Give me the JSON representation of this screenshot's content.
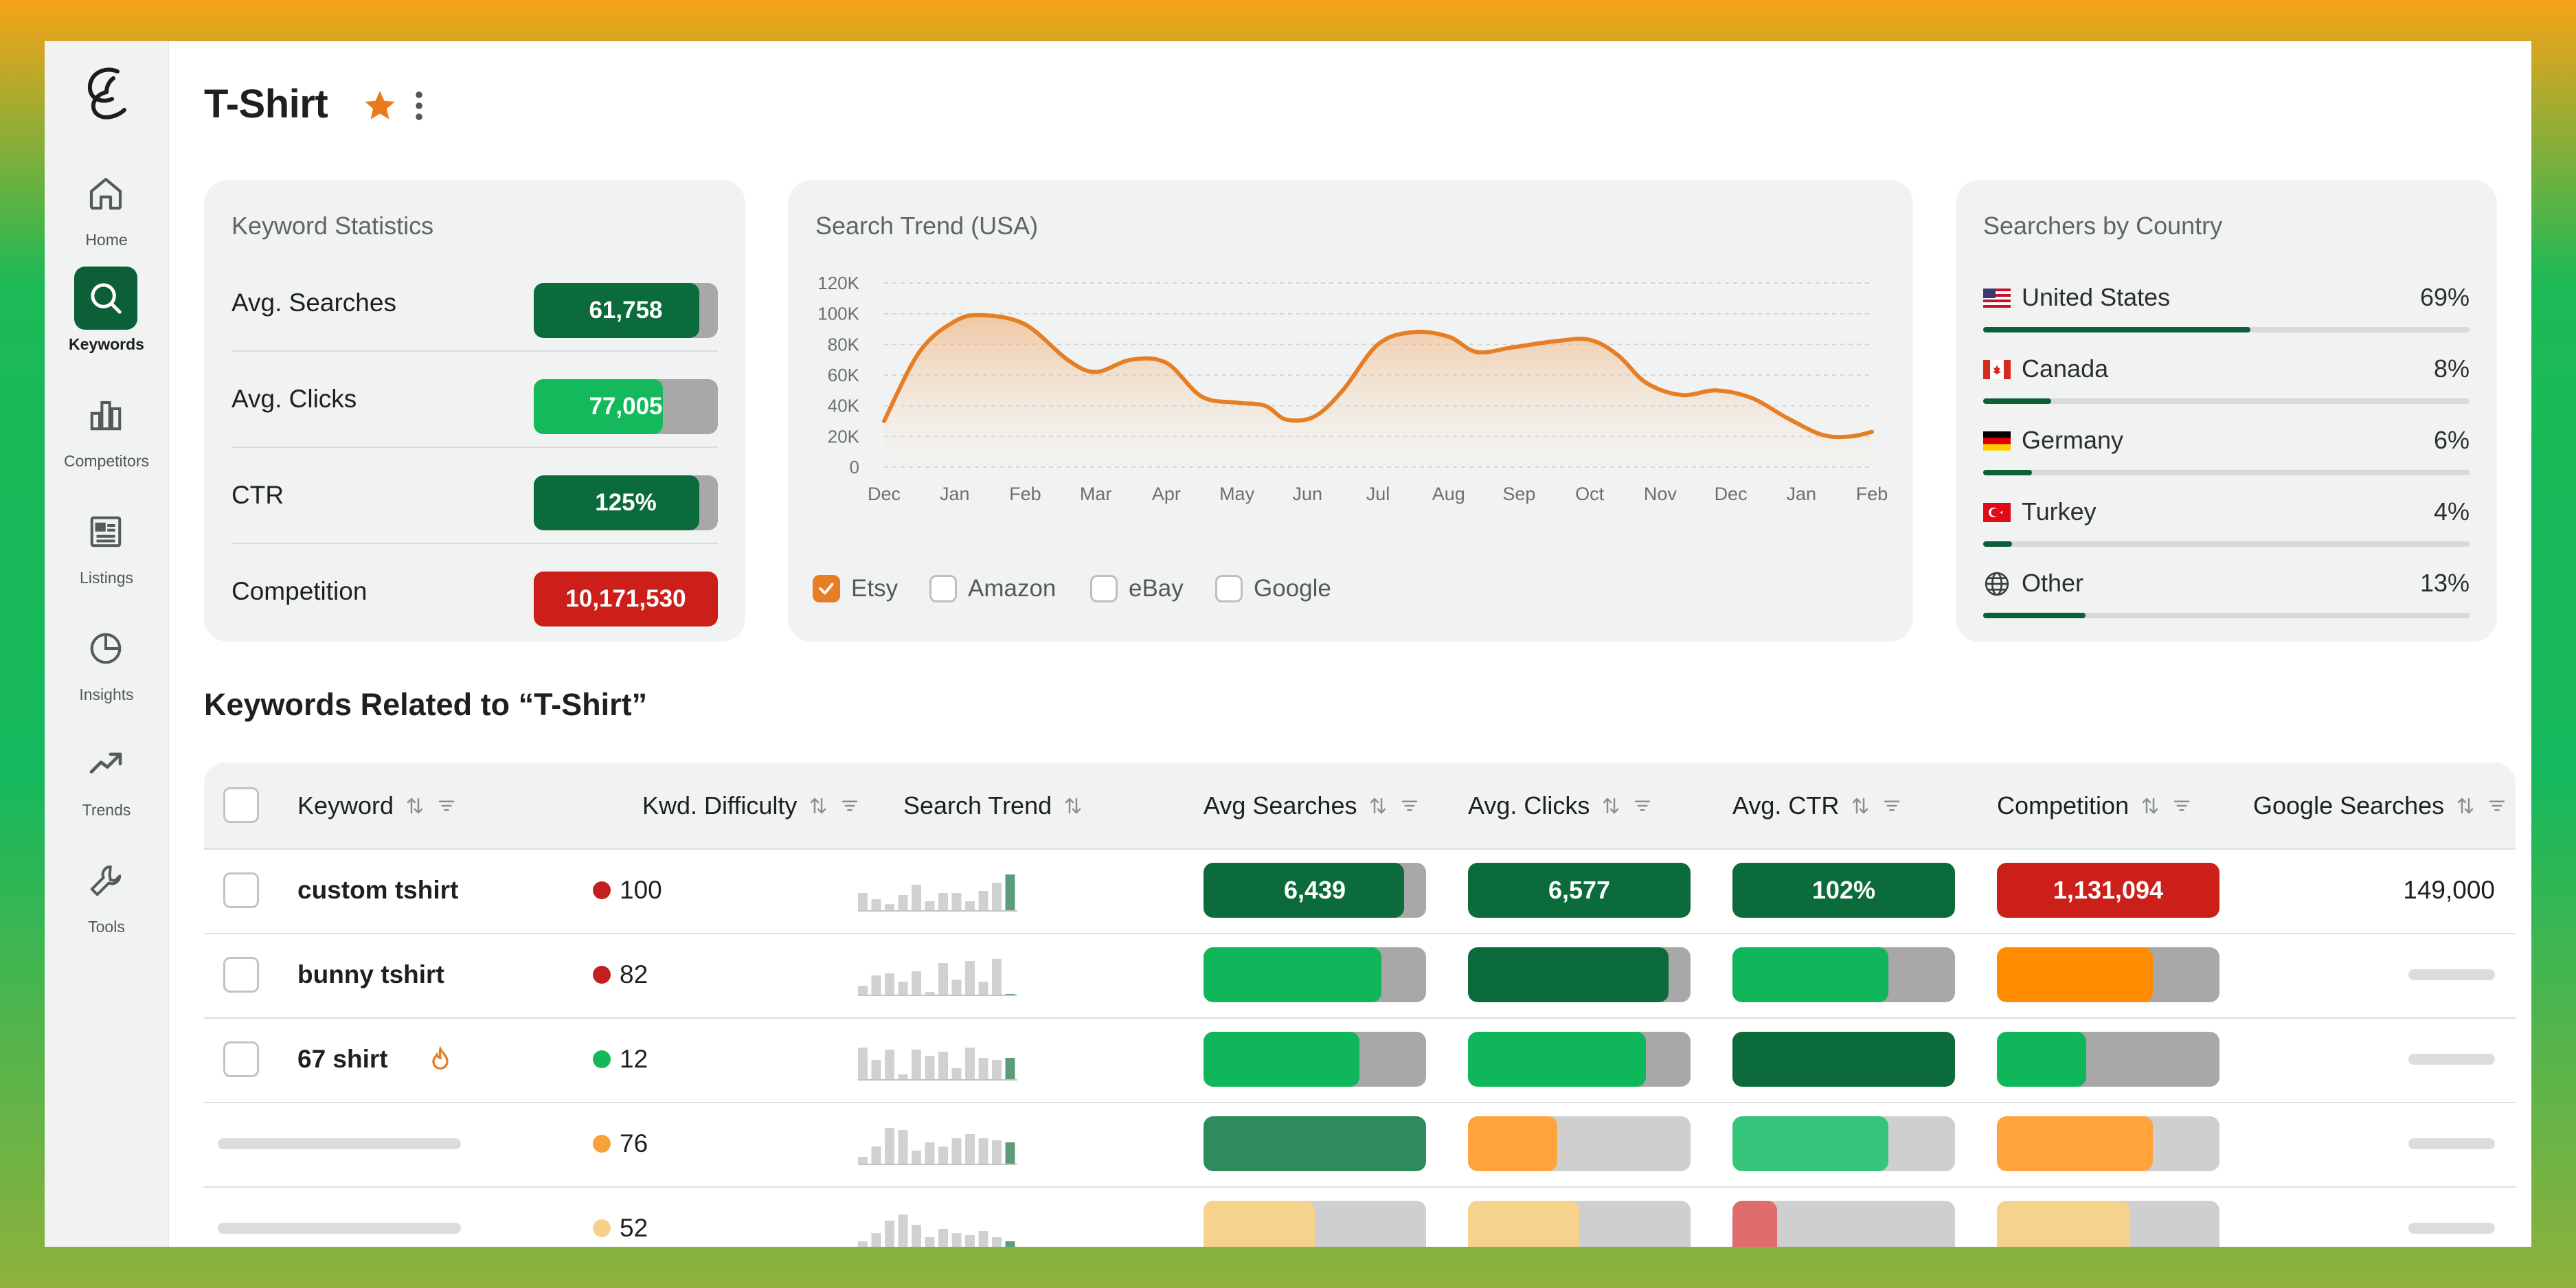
{
  "sidebar": {
    "items": [
      {
        "label": "Home",
        "icon": "home-icon",
        "active": false
      },
      {
        "label": "Keywords",
        "icon": "search-icon",
        "active": true
      },
      {
        "label": "Competitors",
        "icon": "bar-chart-icon",
        "active": false
      },
      {
        "label": "Listings",
        "icon": "listings-icon",
        "active": false
      },
      {
        "label": "Insights",
        "icon": "pie-chart-icon",
        "active": false
      },
      {
        "label": "Trends",
        "icon": "trend-icon",
        "active": false
      },
      {
        "label": "Tools",
        "icon": "wrench-icon",
        "active": false
      }
    ]
  },
  "header": {
    "title": "T-Shirt"
  },
  "keyword_stats": {
    "title": "Keyword Statistics",
    "rows": [
      {
        "label": "Avg. Searches",
        "value": "61,758",
        "fill_pct": 90,
        "color": "#0b6b3a"
      },
      {
        "label": "Avg. Clicks",
        "value": "77,005",
        "fill_pct": 70,
        "color": "#13b95b"
      },
      {
        "label": "CTR",
        "value": "125%",
        "fill_pct": 90,
        "color": "#0b6b3a"
      },
      {
        "label": "Competition",
        "value": "10,171,530",
        "fill_pct": 100,
        "color": "#cc1f1a"
      }
    ]
  },
  "search_trend": {
    "title": "Search Trend (USA)",
    "legend": [
      {
        "label": "Etsy",
        "checked": true
      },
      {
        "label": "Amazon",
        "checked": false
      },
      {
        "label": "eBay",
        "checked": false
      },
      {
        "label": "Google",
        "checked": false
      }
    ]
  },
  "chart_data": {
    "type": "area",
    "title": "Search Trend (USA)",
    "x": [
      "Dec",
      "Jan",
      "Feb",
      "Mar",
      "Apr",
      "May",
      "Jun",
      "Jul",
      "Aug",
      "Sep",
      "Oct",
      "Nov",
      "Dec",
      "Jan",
      "Feb"
    ],
    "x_positions": [
      0,
      1,
      2,
      3,
      4,
      5,
      6,
      7,
      8,
      9,
      10,
      11,
      12,
      13,
      14
    ],
    "y_ticks": [
      "120K",
      "100K",
      "80K",
      "60K",
      "40K",
      "20K",
      "0"
    ],
    "ylim": [
      0,
      120000
    ],
    "series": [
      {
        "name": "Etsy",
        "color": "#e57e25",
        "points": [
          [
            0,
            30000
          ],
          [
            0.5,
            75000
          ],
          [
            1,
            95000
          ],
          [
            1.4,
            99000
          ],
          [
            2,
            93000
          ],
          [
            2.6,
            70000
          ],
          [
            3,
            62000
          ],
          [
            3.5,
            70000
          ],
          [
            4,
            68000
          ],
          [
            4.5,
            46000
          ],
          [
            5,
            42000
          ],
          [
            5.4,
            40000
          ],
          [
            5.7,
            31000
          ],
          [
            6.1,
            33000
          ],
          [
            6.5,
            50000
          ],
          [
            7,
            80000
          ],
          [
            7.5,
            88000
          ],
          [
            8,
            85000
          ],
          [
            8.4,
            75000
          ],
          [
            8.9,
            78000
          ],
          [
            9.5,
            82000
          ],
          [
            10,
            83000
          ],
          [
            10.4,
            73000
          ],
          [
            10.8,
            55000
          ],
          [
            11.3,
            47000
          ],
          [
            11.8,
            50000
          ],
          [
            12.3,
            45000
          ],
          [
            12.8,
            32000
          ],
          [
            13.3,
            21000
          ],
          [
            13.7,
            20000
          ],
          [
            14,
            23000
          ]
        ]
      }
    ],
    "grid": true
  },
  "countries": {
    "title": "Searchers by Country",
    "items": [
      {
        "name": "United States",
        "pct_label": "69%",
        "pct": 55,
        "flag": "us"
      },
      {
        "name": "Canada",
        "pct_label": "8%",
        "pct": 14,
        "flag": "ca"
      },
      {
        "name": "Germany",
        "pct_label": "6%",
        "pct": 10,
        "flag": "de"
      },
      {
        "name": "Turkey",
        "pct_label": "4%",
        "pct": 6,
        "flag": "tr"
      },
      {
        "name": "Other",
        "pct_label": "13%",
        "pct": 21,
        "flag": "globe"
      }
    ]
  },
  "related": {
    "title": "Keywords Related to “T-Shirt”",
    "columns": [
      {
        "label": "Keyword",
        "sort": true,
        "filter": true
      },
      {
        "label": "Kwd. Difficulty",
        "sort": true,
        "filter": true
      },
      {
        "label": "Search Trend",
        "sort": true,
        "filter": false
      },
      {
        "label": "Avg Searches",
        "sort": true,
        "filter": true
      },
      {
        "label": "Avg. Clicks",
        "sort": true,
        "filter": true
      },
      {
        "label": "Avg. CTR",
        "sort": true,
        "filter": true
      },
      {
        "label": "Competition",
        "sort": true,
        "filter": true
      },
      {
        "label": "Google Searches",
        "sort": true,
        "filter": true
      }
    ],
    "rows": [
      {
        "keyword": "custom tshirt",
        "hot": false,
        "difficulty": "100",
        "diff_color": "#c41f1f",
        "spark": [
          0.45,
          0.3,
          0.18,
          0.4,
          0.65,
          0.25,
          0.45,
          0.45,
          0.25,
          0.5,
          0.7,
          0.9
        ],
        "searches": {
          "value": "6,439",
          "fill_pct": 90,
          "color": "#0b6b3a"
        },
        "clicks": {
          "value": "6,577",
          "fill_pct": 100,
          "color": "#0b6b3a"
        },
        "ctr": {
          "value": "102%",
          "fill_pct": 100,
          "color": "#0b6b3a"
        },
        "competition": {
          "value": "1,131,094",
          "fill_pct": 100,
          "color": "#cc1f1a"
        },
        "google": "149,000"
      },
      {
        "keyword": "bunny tshirt",
        "hot": false,
        "difficulty": "82",
        "diff_color": "#c41f1f",
        "spark": [
          0.25,
          0.5,
          0.55,
          0.35,
          0.6,
          0.1,
          0.8,
          0.4,
          0.85,
          0.35,
          0.9,
          0.05
        ],
        "searches": {
          "value": "",
          "fill_pct": 80,
          "color": "#0fb75a"
        },
        "clicks": {
          "value": "",
          "fill_pct": 90,
          "color": "#0b6b3a"
        },
        "ctr": {
          "value": "",
          "fill_pct": 70,
          "color": "#0fb75a"
        },
        "competition": {
          "value": "",
          "fill_pct": 70,
          "color": "#ff8c00"
        },
        "google": ""
      },
      {
        "keyword": "67 shirt",
        "hot": true,
        "difficulty": "12",
        "diff_color": "#14b85a",
        "spark": [
          0.8,
          0.5,
          0.75,
          0.15,
          0.75,
          0.6,
          0.7,
          0.3,
          0.8,
          0.55,
          0.5,
          0.55
        ],
        "searches": {
          "value": "",
          "fill_pct": 70,
          "color": "#0fb75a"
        },
        "clicks": {
          "value": "",
          "fill_pct": 80,
          "color": "#0fb75a"
        },
        "ctr": {
          "value": "",
          "fill_pct": 100,
          "color": "#0b6b3a"
        },
        "competition": {
          "value": "",
          "fill_pct": 40,
          "color": "#0fb75a"
        },
        "google": ""
      },
      {
        "keyword": "",
        "hot": false,
        "difficulty": "76",
        "diff_color": "#f7a23a",
        "spark": [
          0.2,
          0.45,
          0.9,
          0.85,
          0.35,
          0.55,
          0.45,
          0.65,
          0.75,
          0.65,
          0.6,
          0.55
        ],
        "searches": {
          "value": "",
          "fill_pct": 100,
          "color": "#2e8c5c"
        },
        "clicks": {
          "value": "",
          "fill_pct": 40,
          "color": "#ffa33a"
        },
        "ctr": {
          "value": "",
          "fill_pct": 70,
          "color": "#34c57a"
        },
        "competition": {
          "value": "",
          "fill_pct": 70,
          "color": "#ffa33a"
        },
        "google": ""
      },
      {
        "keyword": "",
        "hot": false,
        "difficulty": "52",
        "diff_color": "#f7d08a",
        "spark": [
          0.2,
          0.4,
          0.7,
          0.85,
          0.6,
          0.3,
          0.5,
          0.4,
          0.35,
          0.45,
          0.3,
          0.2
        ],
        "searches": {
          "value": "",
          "fill_pct": 50,
          "color": "#f5d38c"
        },
        "clicks": {
          "value": "",
          "fill_pct": 50,
          "color": "#f5d38c"
        },
        "ctr": {
          "value": "",
          "fill_pct": 20,
          "color": "#e06d6d"
        },
        "competition": {
          "value": "",
          "fill_pct": 60,
          "color": "#f5d38c"
        },
        "google": ""
      }
    ]
  }
}
